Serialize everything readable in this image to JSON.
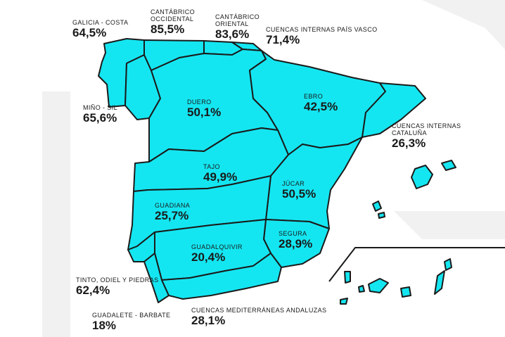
{
  "basins": [
    {
      "name": "GALICIA - COSTA",
      "value": "64,5%"
    },
    {
      "name": "CANTÁBRICO\nOCCIDENTAL",
      "value": "85,5%"
    },
    {
      "name": "CANTÁBRICO\nORIENTAL",
      "value": "83,6%"
    },
    {
      "name": "CUENCAS INTERNAS PAÍS VASCO",
      "value": "71,4%"
    },
    {
      "name": "MIÑO - SIL",
      "value": "65,6%"
    },
    {
      "name": "DUERO",
      "value": "50,1%"
    },
    {
      "name": "EBRO",
      "value": "42,5%"
    },
    {
      "name": "CUENCAS INTERNAS\nCATALUÑA",
      "value": "26,3%"
    },
    {
      "name": "TAJO",
      "value": "49,9%"
    },
    {
      "name": "JÚCAR",
      "value": "50,5%"
    },
    {
      "name": "GUADIANA",
      "value": "25,7%"
    },
    {
      "name": "SEGURA",
      "value": "28,9%"
    },
    {
      "name": "GUADALQUIVIR",
      "value": "20,4%"
    },
    {
      "name": "TINTO, ODIEL Y PIEDRAS",
      "value": "62,4%"
    },
    {
      "name": "GUADALETE - BARBATE",
      "value": "18%"
    },
    {
      "name": "CUENCAS MEDITERRÁNEAS ANDALUZAS",
      "value": "28,1%"
    }
  ],
  "colors": {
    "region_fill": "#14e6f1",
    "border": "#1a1a1a"
  }
}
